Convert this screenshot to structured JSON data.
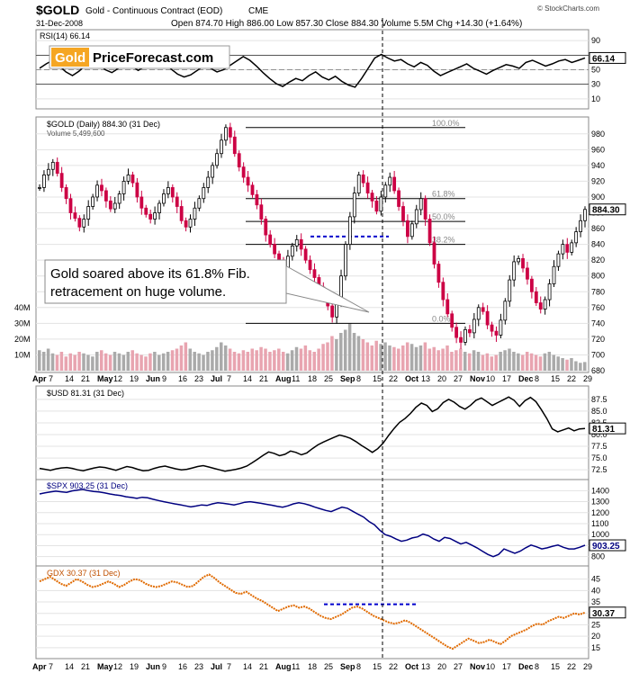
{
  "header": {
    "symbol": "$GOLD",
    "name": "Gold - Continuous Contract (EOD)",
    "exchange": "CME",
    "date": "31-Dec-2008",
    "ohlc": "Open 874.70  High 886.00  Low 857.30  Close 884.30  Volume 5.5M  Chg +14.30 (+1.64%)",
    "source": "© StockCharts.com"
  },
  "logo": {
    "part1": "Gold",
    "part2": "PriceForecast.com"
  },
  "annotation": "Gold soared above its 61.8% Fib. retracement on huge volume.",
  "annotation_lines": [
    "Gold soared above its 61.8% Fib.",
    "retracement on huge volume."
  ],
  "x_axis": {
    "labels": [
      "Apr",
      "7",
      "14",
      "21",
      "May",
      "12",
      "19",
      "Jun",
      "9",
      "16",
      "23",
      "Jul",
      "7",
      "14",
      "21",
      "Aug",
      "11",
      "18",
      "25",
      "Sep",
      "8",
      "15",
      "22",
      "Oct",
      "13",
      "20",
      "27",
      "Nov",
      "10",
      "17",
      "Dec",
      "8",
      "15",
      "22",
      "29"
    ]
  },
  "colors": {
    "up": "#000000",
    "down": "#cc0044",
    "volume_up": "#aaaaaa",
    "volume_down": "#e8a4b0",
    "usd": "#000000",
    "spx": "#000080",
    "gdx": "#e06a00",
    "fib_blue": "#0000cc"
  },
  "chart_data": [
    {
      "type": "line",
      "panel": "rsi",
      "title": "RSI(14) 66.14",
      "y_ticks": [
        "90",
        "70",
        "50",
        "30",
        "10"
      ],
      "last_value": "66.14",
      "ylim": [
        0,
        100
      ],
      "values": [
        52,
        58,
        63,
        55,
        47,
        42,
        48,
        56,
        61,
        57,
        50,
        46,
        52,
        58,
        55,
        49,
        54,
        60,
        64,
        58,
        51,
        44,
        40,
        43,
        49,
        55,
        52,
        47,
        50,
        56,
        62,
        68,
        63,
        55,
        46,
        38,
        31,
        27,
        33,
        38,
        35,
        42,
        47,
        40,
        36,
        41,
        34,
        29,
        26,
        38,
        52,
        66,
        71,
        66,
        62,
        64,
        58,
        54,
        60,
        56,
        48,
        42,
        46,
        50,
        54,
        58,
        52,
        48,
        44,
        49,
        53,
        57,
        55,
        52,
        60,
        63,
        59,
        55,
        58,
        62,
        64,
        60,
        63,
        66.14
      ]
    },
    {
      "type": "candlestick",
      "panel": "price",
      "title": "$GOLD (Daily) 884.30 (31 Dec)",
      "volume_label": "Volume 5,499,600",
      "y_ticks": [
        "980",
        "960",
        "940",
        "920",
        "900",
        "880",
        "860",
        "840",
        "820",
        "800",
        "780",
        "760",
        "740",
        "720",
        "700",
        "680"
      ],
      "ylim": [
        680,
        990
      ],
      "last_value": "884.30",
      "fib_levels": [
        {
          "label": "100.0%",
          "value": 988
        },
        {
          "label": "61.8%",
          "value": 898
        },
        {
          "label": "50.0%",
          "value": 869
        },
        {
          "label": "38.2%",
          "value": 840
        },
        {
          "label": "0.0%",
          "value": 740
        }
      ],
      "resistance_line_value": 850,
      "close_values": [
        912,
        928,
        935,
        944,
        930,
        912,
        898,
        880,
        873,
        862,
        872,
        888,
        900,
        915,
        908,
        895,
        885,
        892,
        904,
        920,
        928,
        918,
        900,
        886,
        878,
        872,
        880,
        892,
        904,
        912,
        900,
        888,
        870,
        862,
        872,
        886,
        898,
        912,
        925,
        940,
        955,
        972,
        988,
        976,
        955,
        938,
        925,
        915,
        903,
        890,
        872,
        852,
        840,
        828,
        818,
        808,
        825,
        838,
        846,
        834,
        820,
        808,
        798,
        786,
        772,
        762,
        748,
        765,
        800,
        840,
        875,
        905,
        928,
        918,
        905,
        895,
        882,
        900,
        915,
        925,
        908,
        888,
        870,
        850,
        866,
        884,
        898,
        872,
        842,
        815,
        792,
        770,
        752,
        735,
        722,
        716,
        732,
        728,
        745,
        760,
        755,
        738,
        730,
        725,
        744,
        768,
        795,
        818,
        822,
        810,
        796,
        780,
        766,
        758,
        770,
        790,
        812,
        828,
        840,
        830,
        842,
        856,
        870,
        884.3
      ],
      "volume": [
        13,
        12,
        14,
        11,
        10,
        12,
        9,
        11,
        10,
        12,
        11,
        10,
        9,
        12,
        13,
        11,
        10,
        12,
        11,
        10,
        12,
        13,
        11,
        10,
        9,
        11,
        12,
        10,
        11,
        12,
        13,
        14,
        16,
        18,
        14,
        12,
        11,
        10,
        12,
        13,
        15,
        18,
        16,
        14,
        12,
        11,
        13,
        12,
        14,
        13,
        15,
        14,
        12,
        13,
        14,
        12,
        11,
        13,
        15,
        14,
        16,
        13,
        12,
        14,
        17,
        18,
        22,
        20,
        24,
        26,
        30,
        24,
        22,
        20,
        18,
        16,
        19,
        17,
        18,
        16,
        15,
        14,
        16,
        18,
        17,
        15,
        16,
        18,
        14,
        15,
        13,
        14,
        16,
        12,
        13,
        14,
        12,
        11,
        13,
        12,
        10,
        11,
        9,
        10,
        12,
        13,
        14,
        12,
        11,
        10,
        12,
        11,
        10,
        9,
        11,
        12,
        10,
        9,
        8,
        7,
        8,
        6,
        5,
        5.5
      ]
    },
    {
      "type": "line",
      "panel": "usd",
      "title": "$USD 81.31 (31 Dec)",
      "y_ticks": [
        "87.5",
        "85.0",
        "82.5",
        "80.0",
        "77.5",
        "75.0",
        "72.5"
      ],
      "ylim": [
        71,
        89
      ],
      "last_value": "81.31",
      "values": [
        72.8,
        72.6,
        72.4,
        72.7,
        72.9,
        73.0,
        72.8,
        72.5,
        72.3,
        72.6,
        72.9,
        73.1,
        73.0,
        72.7,
        72.4,
        72.8,
        73.2,
        73.0,
        72.6,
        72.3,
        72.4,
        72.8,
        73.1,
        73.3,
        73.0,
        72.7,
        72.5,
        72.6,
        72.9,
        73.2,
        73.4,
        73.1,
        72.8,
        72.5,
        72.2,
        72.4,
        72.6,
        72.9,
        73.3,
        74.0,
        74.8,
        75.6,
        76.3,
        76.0,
        75.5,
        75.8,
        76.5,
        76.2,
        75.7,
        76.1,
        77.0,
        77.8,
        78.4,
        78.9,
        79.4,
        79.9,
        79.6,
        79.2,
        78.5,
        77.7,
        77.0,
        76.2,
        77.0,
        78.2,
        79.8,
        81.3,
        82.6,
        83.4,
        84.5,
        85.8,
        86.7,
        86.2,
        84.9,
        85.5,
        86.8,
        87.5,
        86.9,
        86.0,
        85.4,
        86.2,
        87.3,
        87.8,
        87.0,
        86.2,
        86.8,
        87.4,
        88.0,
        87.3,
        86.0,
        87.2,
        87.9,
        87.0,
        85.3,
        83.4,
        81.2,
        80.6,
        81.0,
        81.4,
        80.8,
        81.2,
        81.31
      ]
    },
    {
      "type": "line",
      "panel": "spx",
      "title": "$SPX 903.25 (31 Dec)",
      "y_ticks": [
        "1400",
        "1300",
        "1200",
        "1100",
        "1000",
        "900",
        "800"
      ],
      "ylim": [
        740,
        1460
      ],
      "last_value": "903.25",
      "values": [
        1370,
        1380,
        1388,
        1395,
        1390,
        1385,
        1398,
        1405,
        1412,
        1400,
        1392,
        1388,
        1380,
        1370,
        1362,
        1355,
        1345,
        1338,
        1330,
        1340,
        1335,
        1322,
        1310,
        1300,
        1290,
        1280,
        1272,
        1262,
        1252,
        1260,
        1270,
        1265,
        1280,
        1290,
        1285,
        1278,
        1270,
        1282,
        1295,
        1300,
        1292,
        1285,
        1276,
        1268,
        1258,
        1250,
        1262,
        1280,
        1290,
        1282,
        1268,
        1250,
        1235,
        1220,
        1210,
        1230,
        1250,
        1240,
        1212,
        1185,
        1160,
        1120,
        1090,
        1040,
        1000,
        985,
        960,
        940,
        950,
        970,
        980,
        1005,
        990,
        960,
        940,
        975,
        965,
        940,
        915,
        930,
        905,
        880,
        850,
        820,
        800,
        820,
        870,
        850,
        830,
        850,
        880,
        905,
        890,
        870,
        880,
        895,
        905,
        885,
        870,
        870,
        885,
        903.25
      ]
    },
    {
      "type": "line",
      "panel": "gdx",
      "title": "GDX 30.37 (31 Dec)",
      "y_ticks": [
        "45",
        "40",
        "35",
        "30",
        "25",
        "20",
        "15"
      ],
      "ylim": [
        11,
        48
      ],
      "last_value": "30.37",
      "resistance_line_value": 34,
      "values": [
        44,
        45,
        46,
        44.5,
        43,
        42,
        43.5,
        45,
        44,
        42.5,
        41.5,
        42,
        43,
        44,
        43,
        41.5,
        42.5,
        44,
        45,
        44.5,
        43,
        42,
        41.5,
        42,
        43,
        44,
        43.5,
        42.5,
        41.5,
        42,
        44,
        46,
        47,
        45.5,
        43.5,
        42,
        40.5,
        39,
        38.5,
        39.5,
        38,
        36.5,
        35.5,
        34,
        32.5,
        31,
        32,
        33,
        33.5,
        32.5,
        33,
        32,
        30.5,
        29,
        28,
        27.5,
        28.5,
        29.5,
        31,
        32.5,
        33,
        32,
        30.5,
        29,
        28,
        27,
        26,
        25.5,
        26,
        27,
        26,
        24.5,
        23,
        21.5,
        20,
        18.5,
        17,
        15.5,
        14.5,
        16,
        17.5,
        19,
        18,
        17,
        17.5,
        18.5,
        17.5,
        16.5,
        18,
        20,
        21,
        22,
        23,
        24.5,
        25.5,
        25,
        26.5,
        27.5,
        28.5,
        28,
        29,
        30,
        29.5,
        30.37
      ]
    }
  ]
}
